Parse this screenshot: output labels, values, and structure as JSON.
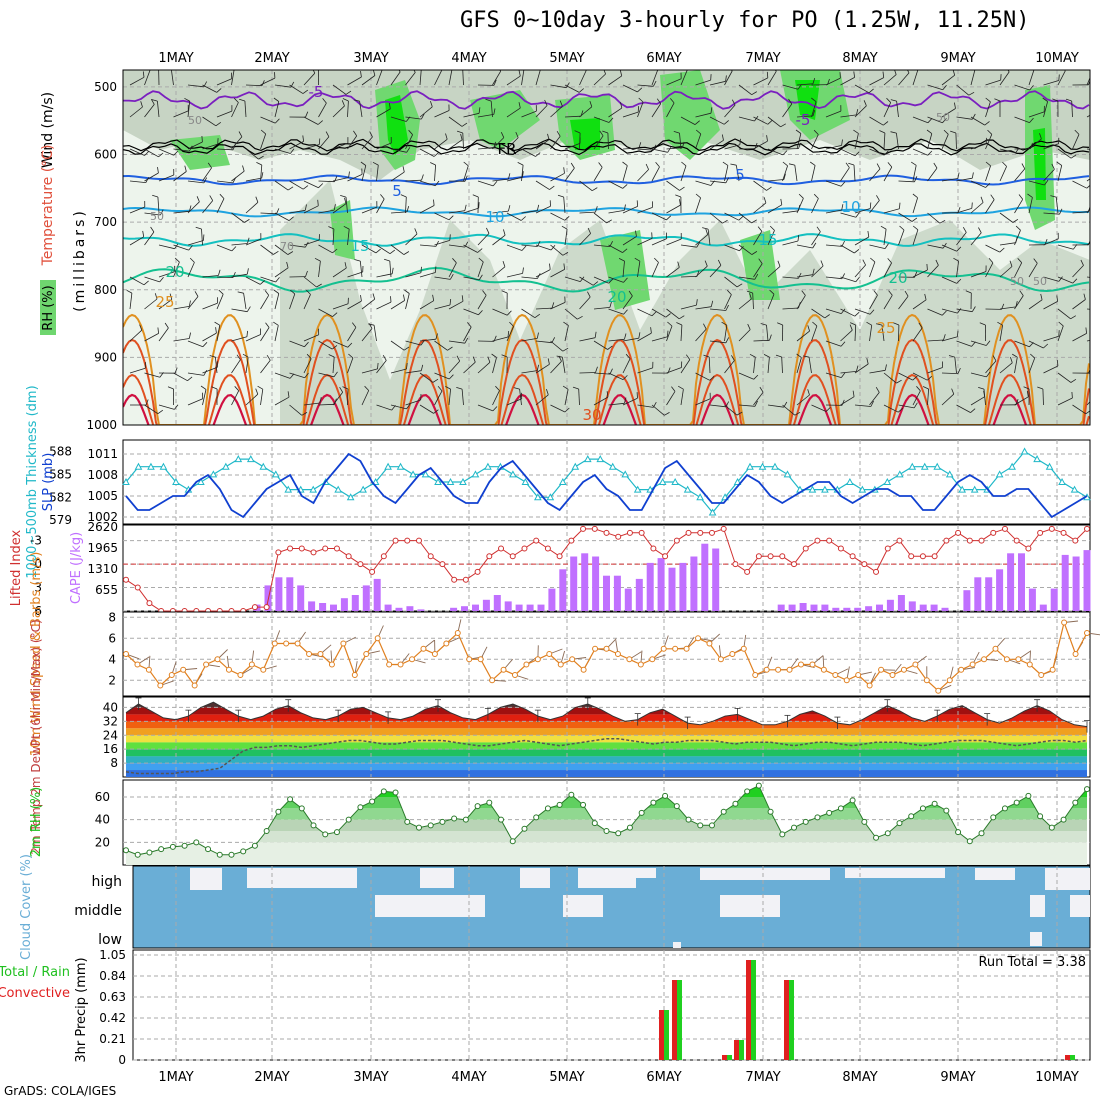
{
  "title": "GFS 0~10day 3-hourly for PO (1.25W, 11.25N)",
  "footer": "GrADS: COLA/IGES",
  "time_axis": {
    "labels": [
      "1MAY",
      "2MAY",
      "3MAY",
      "4MAY",
      "5MAY",
      "6MAY",
      "7MAY",
      "8MAY",
      "9MAY",
      "10MAY"
    ],
    "step_hours": 3
  },
  "colors": {
    "rh_light": "#e6f0e4",
    "rh_mid": "#b9c9b8",
    "rh_green": "#6fd66f",
    "rh_bright": "#00e000",
    "temp_cold": "#7a1fbf",
    "temp_freeze": "#000000",
    "temp_5": "#1f5fe0",
    "temp_10": "#1fa3e0",
    "temp_15": "#14c0c0",
    "temp_20": "#14c090",
    "temp_25": "#e09020",
    "temp_30": "#e05020",
    "temp_35": "#d01040",
    "slp": "#1040d0",
    "thickness": "#20b8c8",
    "li": "#d03030",
    "cape": "#c070ff",
    "wind": "#e08020",
    "rh2m": "#20c020",
    "cloud": "#6aaed6",
    "precip_total": "#20d020",
    "precip_conv": "#e02020"
  },
  "panels": {
    "upper": {
      "ylabel_wind": "Wind (m/s)",
      "ylabel_temp": "Temperature (°C)",
      "ylabel_rh": "RH (%)",
      "ylabel_p": "(millibars)",
      "yticks": [
        "500",
        "600",
        "700",
        "800",
        "900",
        "1000"
      ],
      "contour_labels": [
        "-5",
        "FR",
        "5",
        "10",
        "15",
        "20",
        "25",
        "30"
      ],
      "rh_labels": [
        "50",
        "70"
      ]
    },
    "slp": {
      "ylabel_left": "1000~500mb Thickness (dm)",
      "ylabel_right": "SLP (mb)",
      "yticks_left": [
        "588",
        "585",
        "582",
        "579"
      ],
      "yticks_right": [
        "1011",
        "1008",
        "1005",
        "1002"
      ]
    },
    "li": {
      "ylabel_left": "Lifted Index",
      "ylabel_right": "CAPE (J/kg)",
      "yticks_left": [
        "-3",
        "0",
        "3",
        "6"
      ],
      "yticks_right": [
        "2620",
        "1965",
        "1310",
        "655"
      ]
    },
    "wind": {
      "ylabel": "10m Wind Speed & Barbs (m/s)",
      "yticks": [
        "2",
        "4",
        "6",
        "8"
      ]
    },
    "temp": {
      "ylabel": "2m Temp 2m DewPt (6hr Min/Max) (°C)",
      "yticks": [
        "8",
        "16",
        "24",
        "32",
        "40"
      ]
    },
    "rh2m": {
      "ylabel": "2m RH (%)",
      "yticks": [
        "20",
        "40",
        "60"
      ]
    },
    "cloud": {
      "ylabel": "Cloud Cover (%)",
      "levels": [
        "high",
        "middle",
        "low"
      ]
    },
    "precip": {
      "ylabel_left": "Total / Rain Convective",
      "ylabel_right": "3hr Precip (mm)",
      "yticks": [
        "0",
        "0.21",
        "0.42",
        "0.63",
        "0.84",
        "1.05"
      ],
      "run_total": "Run Total = 3.38"
    }
  },
  "chart_data": [
    {
      "type": "line",
      "name": "slp",
      "xlabel": "",
      "ylabel": "SLP (mb)",
      "ylim": [
        1001,
        1013
      ],
      "values": [
        1005,
        1003,
        1003,
        1004,
        1005,
        1005,
        1007,
        1008,
        1006,
        1003,
        1002,
        1004,
        1006,
        1007,
        1008,
        1005,
        1004,
        1007,
        1009,
        1011,
        1010,
        1007,
        1005,
        1004,
        1006,
        1008,
        1009,
        1007,
        1005,
        1004,
        1004,
        1007,
        1009,
        1010,
        1008,
        1006,
        1004,
        1003,
        1005,
        1007,
        1008,
        1006,
        1005,
        1003,
        1003,
        1006,
        1009,
        1010,
        1008,
        1006,
        1004,
        1004,
        1006,
        1008,
        1007,
        1005,
        1004,
        1005,
        1006,
        1007,
        1007,
        1005,
        1004,
        1005,
        1006,
        1006,
        1005,
        1005,
        1003,
        1003,
        1005,
        1007,
        1008,
        1007,
        1005,
        1005,
        1006,
        1006,
        1004,
        1002,
        1003,
        1004,
        1005
      ]
    },
    {
      "type": "line",
      "name": "thickness",
      "xlabel": "",
      "ylabel": "1000~500mb Thickness (dm)",
      "ylim": [
        578.5,
        589.5
      ],
      "values": [
        584,
        586,
        586,
        586,
        584,
        583,
        584,
        585,
        586,
        587,
        587,
        586,
        585,
        583,
        583,
        583,
        584,
        583,
        582,
        583,
        584,
        586,
        586,
        585,
        585,
        584,
        584,
        584,
        585,
        586,
        586,
        585,
        584,
        582,
        582,
        584,
        586,
        587,
        587,
        586,
        585,
        583,
        583,
        584,
        584,
        583,
        582,
        580,
        582,
        584,
        586,
        586,
        586,
        585,
        583,
        583,
        583,
        583,
        584,
        583,
        583,
        584,
        585,
        586,
        586,
        586,
        585,
        583,
        583,
        583,
        585,
        586,
        588,
        587,
        586,
        584,
        583,
        582
      ]
    },
    {
      "type": "line",
      "name": "lifted_index",
      "xlabel": "",
      "ylabel": "Lifted Index",
      "ylim": [
        -5,
        6
      ],
      "values": [
        2,
        3,
        5,
        6,
        6,
        6,
        6,
        6,
        6,
        6,
        6,
        5.5,
        5.5,
        -1.5,
        -2,
        -2,
        -1.5,
        -2,
        -2,
        -1,
        0,
        1,
        -1,
        -3,
        -3,
        -3,
        -1,
        0,
        2,
        2,
        1,
        -1,
        -2,
        -1,
        -2,
        -3,
        -2,
        -1,
        -3,
        -4.5,
        -4.5,
        -4,
        -3.5,
        -4,
        -4,
        -2,
        -1,
        -3,
        -4,
        -4,
        -4,
        -4.5,
        0,
        1,
        -1,
        -1,
        -1,
        0,
        -2,
        -3,
        -3,
        -2,
        -1,
        0,
        1,
        -2,
        -3,
        -1,
        -1,
        -1,
        -3,
        -4,
        -3,
        -3,
        -4,
        -4.5,
        -3,
        -2,
        -4,
        -4.5,
        -4,
        -3,
        -4.5
      ]
    },
    {
      "type": "bar",
      "name": "cape",
      "xlabel": "",
      "ylabel": "CAPE (J/kg)",
      "ylim": [
        0,
        2620
      ],
      "values": [
        0,
        0,
        0,
        0,
        0,
        0,
        0,
        0,
        0,
        0,
        0,
        0,
        200,
        800,
        1050,
        1050,
        800,
        300,
        250,
        200,
        400,
        500,
        800,
        1000,
        200,
        100,
        150,
        50,
        0,
        0,
        100,
        150,
        200,
        350,
        500,
        300,
        200,
        200,
        200,
        700,
        1300,
        1700,
        1800,
        1700,
        1100,
        1100,
        700,
        1000,
        1500,
        1650,
        1350,
        1500,
        1700,
        2100,
        1950,
        0,
        0,
        0,
        0,
        0,
        200,
        200,
        250,
        200,
        200,
        100,
        100,
        100,
        150,
        200,
        350,
        500,
        300,
        200,
        200,
        100,
        0,
        650,
        1050,
        1050,
        1300,
        1800,
        1800,
        700,
        200,
        700,
        1750,
        1700,
        1900
      ]
    },
    {
      "type": "line",
      "name": "wind_speed_10m",
      "xlabel": "",
      "ylabel": "10m Wind Speed (m/s)",
      "ylim": [
        0.5,
        8.5
      ],
      "values": [
        4.5,
        3.5,
        3,
        1.5,
        2.5,
        3,
        1.5,
        3.5,
        4,
        3,
        2.5,
        3.5,
        3,
        5.5,
        5.5,
        5.5,
        4.5,
        4.5,
        3.5,
        5.5,
        2.5,
        4.5,
        6,
        3.5,
        3.5,
        4,
        5,
        4.5,
        5.5,
        6.5,
        4,
        4,
        2,
        3,
        2.5,
        3.5,
        4,
        4.5,
        3.5,
        4,
        3,
        5,
        5,
        4.5,
        4,
        3.5,
        4,
        5,
        5,
        5,
        6,
        5.5,
        4,
        4.5,
        5,
        2.5,
        3,
        3,
        3,
        3.5,
        3.5,
        3,
        2.5,
        2,
        2.5,
        1.5,
        3,
        2.5,
        3,
        3.5,
        2,
        1,
        2,
        3,
        3.5,
        4,
        5,
        4,
        4,
        3.5,
        2.5,
        3,
        7.5,
        4.5,
        6.5
      ]
    },
    {
      "type": "area",
      "name": "temp_2m",
      "xlabel": "",
      "ylabel": "2m Temp (°C)",
      "ylim": [
        0,
        46
      ],
      "values": [
        37,
        42,
        38,
        34,
        33,
        35,
        40,
        43,
        39,
        35,
        33,
        35,
        39,
        41,
        37,
        34,
        33,
        35,
        39,
        40,
        37,
        34,
        33,
        35,
        39,
        41,
        37,
        34,
        33,
        36,
        40,
        42,
        39,
        35,
        33,
        35,
        40,
        42,
        39,
        35,
        32,
        33,
        37,
        39,
        35,
        31,
        30,
        32,
        35,
        36,
        33,
        30,
        30,
        32,
        36,
        38,
        35,
        31,
        30,
        33,
        37,
        41,
        38,
        34,
        32,
        35,
        39,
        41,
        37,
        33,
        31,
        34,
        38,
        41,
        38,
        33,
        30,
        29
      ]
    },
    {
      "type": "line",
      "name": "dewpoint_2m",
      "xlabel": "",
      "ylabel": "2m DewPt (°C)",
      "ylim": [
        0,
        46
      ],
      "values": [
        3,
        2,
        2,
        2,
        2,
        3,
        3,
        4,
        5,
        10,
        15,
        17,
        17,
        18,
        18,
        17,
        18,
        19,
        20,
        21,
        21,
        20,
        19,
        19,
        20,
        21,
        21,
        21,
        20,
        19,
        18,
        18,
        19,
        20,
        21,
        20,
        19,
        18,
        19,
        20,
        21,
        22,
        22,
        21,
        20,
        19,
        20,
        20,
        21,
        21,
        21,
        20,
        19,
        20,
        20,
        20,
        19,
        18,
        19,
        20,
        20,
        19,
        18,
        19,
        20,
        20,
        20,
        19,
        18,
        19,
        20,
        21,
        21,
        21,
        20,
        19,
        18,
        19,
        20,
        21,
        21,
        20,
        21
      ]
    },
    {
      "type": "area",
      "name": "rh_2m",
      "xlabel": "",
      "ylabel": "2m RH (%)",
      "ylim": [
        0,
        75
      ],
      "values": [
        13,
        9,
        11,
        14,
        16,
        17,
        20,
        14,
        9,
        9,
        12,
        17,
        30,
        47,
        58,
        50,
        35,
        27,
        29,
        40,
        51,
        56,
        65,
        64,
        38,
        33,
        35,
        38,
        41,
        40,
        52,
        55,
        40,
        21,
        32,
        42,
        50,
        53,
        62,
        53,
        37,
        30,
        28,
        33,
        46,
        55,
        61,
        52,
        40,
        35,
        35,
        47,
        54,
        65,
        70,
        47,
        27,
        33,
        38,
        42,
        46,
        50,
        57,
        38,
        24,
        28,
        37,
        43,
        50,
        54,
        48,
        29,
        21,
        28,
        42,
        50,
        55,
        61,
        43,
        33,
        40,
        55,
        67
      ]
    },
    {
      "type": "bar",
      "name": "precip_3hr",
      "xlabel": "",
      "ylabel": "3hr Precip (mm)",
      "ylim": [
        0,
        1.05
      ],
      "categories": [
        "6MAY 03",
        "6MAY 06",
        "6MAY 18",
        "6MAY 21",
        "7MAY 00",
        "7MAY 09",
        "10MAY 03"
      ],
      "values": [
        0.5,
        0.8,
        0.05,
        0.2,
        1.0,
        0.8,
        0.05
      ]
    }
  ]
}
